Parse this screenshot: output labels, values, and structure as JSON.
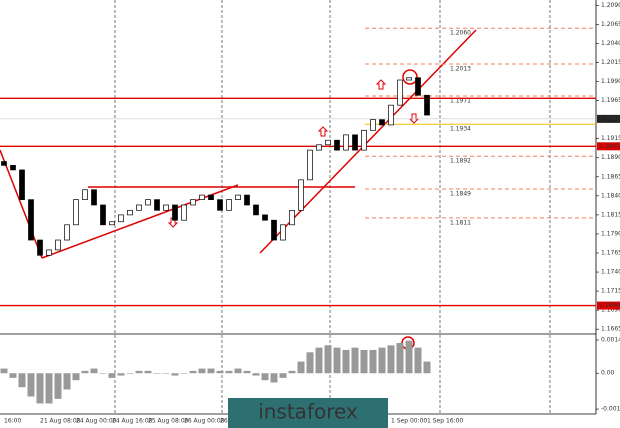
{
  "chart_data": [
    {
      "type": "candlestick",
      "categories": [
        "16:00",
        null,
        null,
        null,
        "21 Aug 08:00",
        null,
        null,
        null,
        "24 Aug 00:00",
        null,
        null,
        null,
        "24 Aug 16:00",
        null,
        null,
        null,
        "25 Aug 08:00",
        null,
        null,
        null,
        "26 Aug 00:00",
        null,
        null,
        null,
        "26 Aug 16:00",
        null,
        null,
        null,
        null,
        null,
        null,
        null,
        null,
        null,
        null,
        null,
        null,
        null,
        null,
        null,
        null,
        null,
        null,
        "1 Sep 00:00",
        null,
        null,
        null,
        "1 Sep 16:00"
      ],
      "open": [
        1.1885,
        1.188,
        1.1874,
        1.1835,
        1.1782,
        1.1762,
        1.1769,
        1.1782,
        1.1802,
        1.1835,
        1.1848,
        1.1828,
        1.1802,
        1.1806,
        1.1815,
        1.1821,
        1.1828,
        1.1835,
        1.1821,
        1.1828,
        1.1808,
        1.1828,
        1.1835,
        1.1841,
        1.1835,
        1.1821,
        1.1835,
        1.1841,
        1.1828,
        1.1815,
        1.1808,
        1.1782,
        1.1802,
        1.1821,
        1.1861,
        1.19,
        1.1907,
        1.1913,
        1.19,
        1.192,
        1.19,
        1.1926,
        1.194,
        1.1933,
        1.1959,
        1.1992,
        1.1995,
        1.1972
      ],
      "close": [
        1.188,
        1.1874,
        1.1835,
        1.1782,
        1.1762,
        1.1769,
        1.1782,
        1.1802,
        1.1835,
        1.1848,
        1.1828,
        1.1802,
        1.1806,
        1.1815,
        1.1821,
        1.1828,
        1.1835,
        1.1821,
        1.1828,
        1.1808,
        1.1828,
        1.1835,
        1.1841,
        1.1835,
        1.1821,
        1.1835,
        1.1841,
        1.1828,
        1.1815,
        1.1808,
        1.1782,
        1.1802,
        1.1821,
        1.1861,
        1.19,
        1.1907,
        1.1913,
        1.19,
        1.192,
        1.19,
        1.1926,
        1.194,
        1.1933,
        1.1959,
        1.1992,
        1.1995,
        1.1972,
        1.1946
      ],
      "ylim": [
        1.166,
        1.2097
      ],
      "yticks": [
        {
          "value": 1.209,
          "label": "1.2090"
        },
        {
          "value": 1.2065,
          "label": "1.2065"
        },
        {
          "value": 1.204,
          "label": "1.2040"
        },
        {
          "value": 1.2015,
          "label": "1.2015"
        },
        {
          "value": 1.199,
          "label": "1.1990"
        },
        {
          "value": 1.1965,
          "label": "1.1965"
        },
        {
          "value": 1.1915,
          "label": "1.1915"
        },
        {
          "value": 1.189,
          "label": "1.1890"
        },
        {
          "value": 1.1865,
          "label": "1.1865"
        },
        {
          "value": 1.184,
          "label": "1.1840"
        },
        {
          "value": 1.1815,
          "label": "1.1815"
        },
        {
          "value": 1.179,
          "label": "1.1790"
        },
        {
          "value": 1.1765,
          "label": "1.1765"
        },
        {
          "value": 1.174,
          "label": "1.1740"
        },
        {
          "value": 1.1715,
          "label": "1.1715"
        },
        {
          "value": 1.169,
          "label": "1.1690"
        },
        {
          "value": 1.1665,
          "label": "1.1665"
        }
      ],
      "last_price": 1.1941,
      "hlines": [
        {
          "value": 1.1968
        },
        {
          "value": 1.1905,
          "label": "1.1905"
        },
        {
          "value": 1.1696,
          "label": "1.1696"
        }
      ],
      "levels": [
        {
          "value": 1.206,
          "label": "1.2060"
        },
        {
          "value": 1.2013,
          "label": "1.2013"
        },
        {
          "value": 1.1971,
          "label": "1.1971"
        },
        {
          "value": 1.1934,
          "label": "1.1934"
        },
        {
          "value": 1.1892,
          "label": "1.1892"
        },
        {
          "value": 1.1849,
          "label": "1.1849"
        },
        {
          "value": 1.1811,
          "label": "1.1811"
        }
      ],
      "color": "#000000",
      "line_color": "#e00000",
      "watermark": "instaforex"
    },
    {
      "type": "bar",
      "values": [
        0.0002,
        -0.0002,
        -0.0006,
        -0.001,
        -0.0013,
        -0.0013,
        -0.0011,
        -0.0007,
        -0.0003,
        0.0001,
        0.0002,
        0.0,
        -0.0002,
        -0.0001,
        0.0,
        0.0001,
        0.0001,
        0.0,
        0.0,
        -0.0001,
        0.0,
        0.0001,
        0.0002,
        0.0002,
        0.0001,
        0.0001,
        0.0002,
        0.0001,
        -0.0001,
        -0.0003,
        -0.0004,
        -0.0002,
        0.0001,
        0.0005,
        0.0009,
        0.0011,
        0.0012,
        0.0011,
        0.001,
        0.0011,
        0.001,
        0.001,
        0.0011,
        0.0012,
        0.0013,
        0.0014,
        0.0011,
        0.0005
      ],
      "ylim": [
        -0.00171,
        0.0016
      ],
      "yticks": [
        0.00143,
        {
          "value": 0,
          "label": "0.00"
        },
        -0.00154
      ],
      "color": "#999999"
    }
  ]
}
